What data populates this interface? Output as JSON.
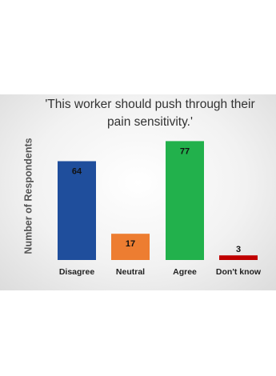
{
  "chart_data": {
    "type": "bar",
    "title": "'This worker should push through their pain sensitivity.'",
    "y_label": "Number of Respondents",
    "categories": [
      "Disagree",
      "Neutral",
      "Agree",
      "Don't know"
    ],
    "values": [
      64,
      17,
      77,
      3
    ],
    "colors": [
      "#1f4e9c",
      "#ed7d31",
      "#22b14c",
      "#c00000"
    ]
  }
}
